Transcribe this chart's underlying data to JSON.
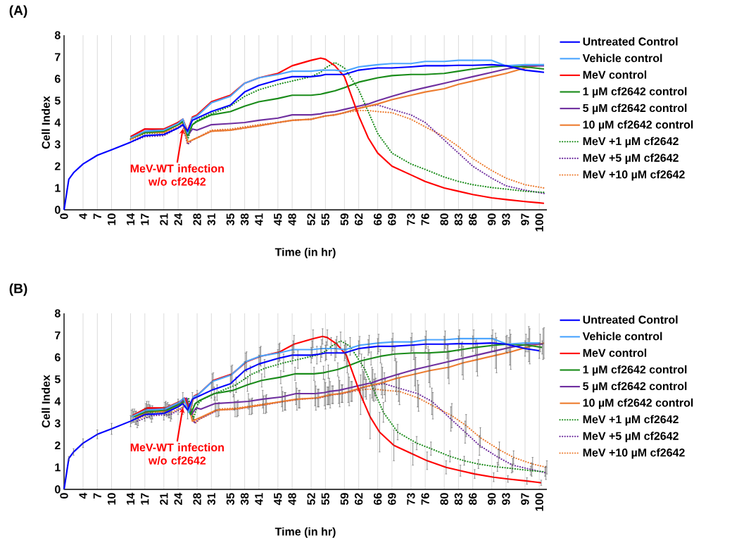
{
  "chart_data": [
    {
      "type": "line",
      "title": "(A)",
      "xlabel": "Time (in hr)",
      "ylabel": "Cell Index",
      "x": [
        0,
        1,
        2,
        4,
        7,
        10,
        14,
        17,
        21,
        24,
        25,
        26,
        27,
        28,
        31,
        35,
        38,
        41,
        45,
        48,
        52,
        54,
        55,
        57,
        59,
        62,
        64,
        66,
        69,
        73,
        76,
        80,
        83,
        86,
        90,
        93,
        97,
        101
      ],
      "xlim": [
        0,
        101.6
      ],
      "ylim": [
        0,
        8
      ],
      "xticks": [
        0,
        4,
        7,
        10,
        14,
        17,
        21,
        24,
        28,
        31,
        35,
        38,
        41,
        45,
        48,
        52,
        55,
        59,
        62,
        66,
        69,
        73,
        76,
        80,
        83,
        86,
        90,
        93,
        97,
        100
      ],
      "yticks": [
        0,
        1,
        2,
        3,
        4,
        5,
        6,
        7,
        8
      ],
      "grid": "x",
      "legend": "right",
      "annotations": [
        {
          "text": "MeV-WT infection w/o cf2642",
          "x": 25,
          "y": 3.8
        }
      ],
      "series": [
        {
          "name": "Untreated Control",
          "color": "#0000ff",
          "line_style": "solid",
          "values": [
            0,
            1.4,
            1.7,
            2.1,
            2.5,
            2.75,
            3.1,
            3.4,
            3.45,
            3.75,
            3.9,
            3.6,
            4.1,
            4.2,
            4.5,
            4.8,
            5.4,
            5.7,
            5.95,
            6.1,
            6.1,
            6.15,
            6.2,
            6.2,
            6.2,
            6.4,
            6.45,
            6.5,
            6.5,
            6.55,
            6.6,
            6.6,
            6.62,
            6.62,
            6.65,
            6.6,
            6.4,
            6.3
          ]
        },
        {
          "name": "Vehicle control",
          "color": "#4da6ff",
          "line_style": "solid",
          "values": [
            null,
            null,
            null,
            null,
            null,
            null,
            3.3,
            3.6,
            3.65,
            3.95,
            4.15,
            3.5,
            4.2,
            4.3,
            4.9,
            5.2,
            5.8,
            6.05,
            6.2,
            6.35,
            6.35,
            6.4,
            6.4,
            6.4,
            6.35,
            6.55,
            6.6,
            6.65,
            6.7,
            6.7,
            6.8,
            6.8,
            6.85,
            6.85,
            6.85,
            6.6,
            6.65,
            6.65
          ]
        },
        {
          "name": "MeV control",
          "color": "#ff0000",
          "line_style": "solid",
          "values": [
            null,
            null,
            null,
            null,
            null,
            null,
            3.35,
            3.7,
            3.7,
            4.0,
            4.15,
            3.6,
            4.25,
            4.35,
            4.95,
            5.25,
            5.8,
            6.05,
            6.25,
            6.6,
            6.85,
            6.95,
            6.9,
            6.6,
            6.1,
            4.3,
            3.3,
            2.6,
            2.0,
            1.6,
            1.3,
            1.0,
            0.85,
            0.7,
            0.55,
            0.47,
            0.38,
            0.3
          ]
        },
        {
          "name": "1 µM cf2642 control",
          "color": "#1a8c1a",
          "line_style": "solid",
          "values": [
            null,
            null,
            null,
            null,
            null,
            null,
            3.3,
            3.55,
            3.6,
            3.9,
            4.05,
            3.4,
            3.9,
            4.05,
            4.35,
            4.5,
            4.75,
            4.95,
            5.1,
            5.25,
            5.25,
            5.3,
            5.35,
            5.45,
            5.6,
            5.85,
            5.95,
            6.05,
            6.15,
            6.2,
            6.2,
            6.25,
            6.35,
            6.45,
            6.55,
            6.6,
            6.55,
            6.45
          ]
        },
        {
          "name": "5 µM cf2642 control",
          "color": "#7030a0",
          "line_style": "solid",
          "values": [
            null,
            null,
            null,
            null,
            null,
            null,
            3.35,
            3.7,
            3.65,
            4.0,
            4.15,
            3.4,
            3.7,
            3.65,
            3.9,
            3.95,
            4.0,
            4.1,
            4.2,
            4.35,
            4.35,
            4.4,
            4.45,
            4.5,
            4.6,
            4.75,
            4.85,
            5.0,
            5.2,
            5.45,
            5.6,
            5.8,
            5.95,
            6.1,
            6.3,
            6.45,
            6.6,
            6.6
          ]
        },
        {
          "name": "10 µM cf2642 control",
          "color": "#ed7d31",
          "line_style": "solid",
          "values": [
            null,
            null,
            null,
            null,
            null,
            null,
            3.25,
            3.55,
            3.55,
            3.9,
            4.0,
            3.1,
            3.2,
            3.3,
            3.6,
            3.65,
            3.75,
            3.85,
            4.0,
            4.1,
            4.15,
            4.25,
            4.3,
            4.35,
            4.45,
            4.65,
            4.75,
            4.85,
            5.05,
            5.25,
            5.4,
            5.55,
            5.75,
            5.9,
            6.1,
            6.25,
            6.5,
            6.65
          ]
        },
        {
          "name": "MeV +1 µM cf2642",
          "color": "#1a8c1a",
          "line_style": "dotted",
          "values": [
            null,
            null,
            null,
            null,
            null,
            null,
            3.25,
            3.5,
            3.55,
            3.95,
            4.15,
            3.2,
            3.9,
            4.1,
            4.4,
            4.75,
            5.2,
            5.5,
            5.75,
            5.9,
            6.1,
            6.3,
            6.5,
            6.75,
            6.5,
            5.5,
            4.5,
            3.5,
            2.6,
            2.1,
            1.85,
            1.5,
            1.3,
            1.15,
            1.02,
            0.95,
            0.85,
            0.8
          ]
        },
        {
          "name": "MeV +5 µM cf2642",
          "color": "#7030a0",
          "line_style": "dotted",
          "values": [
            null,
            null,
            null,
            null,
            null,
            null,
            3.1,
            3.35,
            3.4,
            3.75,
            3.85,
            3.0,
            3.2,
            3.3,
            3.6,
            3.65,
            3.75,
            3.85,
            4.0,
            4.1,
            4.15,
            4.25,
            4.3,
            4.35,
            4.45,
            4.65,
            4.75,
            4.8,
            4.6,
            4.35,
            4.0,
            3.2,
            2.6,
            2.0,
            1.45,
            1.1,
            0.9,
            0.75
          ]
        },
        {
          "name": "MeV +10 µM cf2642",
          "color": "#ed7d31",
          "line_style": "dotted",
          "values": [
            null,
            null,
            null,
            null,
            null,
            null,
            3.2,
            3.5,
            3.5,
            3.8,
            3.95,
            3.0,
            3.2,
            3.3,
            3.65,
            3.7,
            3.8,
            3.9,
            4.0,
            4.1,
            4.15,
            4.25,
            4.3,
            4.35,
            4.45,
            4.55,
            4.55,
            4.5,
            4.45,
            4.15,
            3.8,
            3.35,
            2.9,
            2.35,
            1.8,
            1.45,
            1.15,
            1.0
          ]
        }
      ]
    },
    {
      "type": "line",
      "title": "(B)",
      "xlabel": "Time (in hr)",
      "ylabel": "Cell Index",
      "xlim": [
        0,
        101.6
      ],
      "ylim": [
        0,
        8
      ],
      "xticks": [
        0,
        4,
        7,
        10,
        14,
        17,
        21,
        24,
        28,
        31,
        35,
        38,
        41,
        45,
        48,
        52,
        55,
        59,
        62,
        66,
        69,
        73,
        76,
        80,
        83,
        86,
        90,
        93,
        97,
        100
      ],
      "yticks": [
        0,
        1,
        2,
        3,
        4,
        5,
        6,
        7,
        8
      ],
      "grid": "x",
      "legend": "right",
      "annotations": [
        {
          "text": "MeV-WT infection w/o cf2642",
          "x": 25,
          "y": 3.8
        }
      ],
      "series": [
        {
          "name": "Untreated Control",
          "color": "#0000ff",
          "line_style": "solid",
          "x": [
            0,
            1,
            2,
            4,
            7,
            10,
            14,
            17,
            21,
            24,
            25,
            26,
            27,
            28,
            31,
            35,
            38,
            41,
            45,
            48,
            52,
            54,
            55,
            57,
            59,
            62,
            64,
            66,
            69,
            73,
            76,
            80,
            83,
            86,
            90,
            93,
            97,
            100
          ],
          "values": [
            0,
            1.4,
            1.7,
            2.1,
            2.5,
            2.75,
            3.1,
            3.4,
            3.45,
            3.75,
            3.9,
            3.6,
            4.1,
            4.2,
            4.5,
            4.8,
            5.4,
            5.7,
            5.95,
            6.1,
            6.1,
            6.15,
            6.2,
            6.2,
            6.2,
            6.4,
            6.45,
            6.5,
            6.5,
            6.55,
            6.6,
            6.6,
            6.62,
            6.62,
            6.65,
            6.6,
            6.4,
            6.3
          ],
          "errors": [
            0,
            0.1,
            0.15,
            0.2,
            0.2,
            0.25,
            0.25,
            0.3,
            0.3,
            0.35,
            0.5,
            0.4,
            0.3,
            0.3,
            0.35,
            0.4,
            0.4,
            0.4,
            0.4,
            0.4,
            0.35,
            0.35,
            0.35,
            0.35,
            0.35,
            0.35,
            0.35,
            0.35,
            0.35,
            0.35,
            0.35,
            0.35,
            0.35,
            0.35,
            0.35,
            0.35,
            0.35,
            0.35
          ]
        },
        {
          "name": "Vehicle control",
          "color": "#4da6ff",
          "line_style": "solid",
          "x": [
            14.2,
            17.2,
            21.2,
            24.2,
            25.2,
            26.2,
            27.2,
            28.2,
            31.2,
            35.2,
            38.2,
            41.2,
            45.2,
            48.2,
            52.2,
            54.2,
            55.2,
            57.2,
            59.2,
            62.2,
            64.2,
            66.2,
            69.2,
            73.2,
            76.2,
            80.2,
            83.2,
            86.2,
            90.2,
            93.2,
            97.2,
            100.2
          ],
          "values": [
            3.3,
            3.6,
            3.65,
            3.95,
            4.15,
            3.5,
            4.2,
            4.3,
            4.9,
            5.2,
            5.8,
            6.05,
            6.2,
            6.35,
            6.35,
            6.4,
            6.4,
            6.4,
            6.35,
            6.55,
            6.6,
            6.65,
            6.7,
            6.7,
            6.8,
            6.8,
            6.85,
            6.85,
            6.85,
            6.6,
            6.65,
            6.65
          ],
          "errors": [
            0.3,
            0.3,
            0.3,
            null,
            null,
            null,
            null,
            null,
            0.35,
            0.4,
            0.4,
            0.4,
            0.4,
            0.4,
            0.4,
            0.4,
            null,
            0.4,
            0.4,
            0.4,
            0.4,
            0.4,
            0.4,
            0.4,
            0.4,
            0.4,
            0.4,
            0.4,
            0.4,
            0.4,
            0.4,
            0.4
          ]
        },
        {
          "name": "MeV control",
          "color": "#ff0000",
          "line_style": "solid",
          "x": [
            14.4,
            17.4,
            21.4,
            24.4,
            25.4,
            26.4,
            27.4,
            28.4,
            31.4,
            35.4,
            38.4,
            41.4,
            45.4,
            48.4,
            52.4,
            54.4,
            55.4,
            57.4,
            59.4,
            62.4,
            64.4,
            66.4,
            69.4,
            73.4,
            76.4,
            80.4,
            83.4,
            86.4,
            90.4,
            93.4,
            97.4,
            100.4
          ],
          "values": [
            3.35,
            3.7,
            3.7,
            4.0,
            4.15,
            3.6,
            4.25,
            4.35,
            4.95,
            5.25,
            5.8,
            6.05,
            6.25,
            6.6,
            6.85,
            6.95,
            6.9,
            6.6,
            6.1,
            4.3,
            3.3,
            2.6,
            2.0,
            1.6,
            1.3,
            1.0,
            0.85,
            0.7,
            0.55,
            0.47,
            0.38,
            0.3
          ],
          "errors": [
            0.3,
            0.3,
            0.3,
            null,
            null,
            null,
            null,
            null,
            0.35,
            0.4,
            0.45,
            0.45,
            0.4,
            0.4,
            0.4,
            0.35,
            0.35,
            0.35,
            0.5,
            0.9,
            1.0,
            0.9,
            0.7,
            0.5,
            0.4,
            0.3,
            0.25,
            0.2,
            0.2,
            0.15,
            0.15,
            0.12
          ]
        },
        {
          "name": "1 µM cf2642 control",
          "color": "#1a8c1a",
          "line_style": "solid",
          "x": [
            14.6,
            17.6,
            21.6,
            24.6,
            25.6,
            26.6,
            27.6,
            28.6,
            31.6,
            35.6,
            38.6,
            41.6,
            45.6,
            48.6,
            52.6,
            54.6,
            55.6,
            57.6,
            59.6,
            62.6,
            64.6,
            66.6,
            69.6,
            73.6,
            76.6,
            80.6,
            83.6,
            86.6,
            90.6,
            93.6,
            97.6,
            100.6
          ],
          "values": [
            3.3,
            3.55,
            3.6,
            3.9,
            4.05,
            3.4,
            3.9,
            4.05,
            4.35,
            4.5,
            4.75,
            4.95,
            5.1,
            5.25,
            5.25,
            5.3,
            5.35,
            5.45,
            5.6,
            5.85,
            5.95,
            6.05,
            6.15,
            6.2,
            6.2,
            6.25,
            6.35,
            6.45,
            6.55,
            6.6,
            6.55,
            6.45
          ],
          "errors": [
            0.25,
            0.3,
            0.3,
            null,
            null,
            null,
            null,
            null,
            0.3,
            0.3,
            0.3,
            0.3,
            0.3,
            0.3,
            0.3,
            0.3,
            0.3,
            0.3,
            0.3,
            0.3,
            0.3,
            0.3,
            0.3,
            0.3,
            0.3,
            0.3,
            0.3,
            0.3,
            0.3,
            0.3,
            0.3,
            0.3
          ]
        },
        {
          "name": "5 µM cf2642 control",
          "color": "#7030a0",
          "line_style": "solid",
          "x": [
            14.8,
            17.8,
            21.8,
            24.8,
            25.8,
            26.8,
            27.8,
            28.8,
            31.8,
            35.8,
            38.8,
            41.8,
            45.8,
            48.8,
            52.8,
            54.8,
            55.8,
            57.8,
            59.8,
            62.8,
            64.8,
            66.8,
            69.8,
            73.8,
            76.8,
            80.8,
            83.8,
            86.8,
            90.8,
            93.8,
            97.8,
            100.8
          ],
          "values": [
            3.35,
            3.7,
            3.65,
            4.0,
            4.15,
            3.4,
            3.7,
            3.65,
            3.9,
            3.95,
            4.0,
            4.1,
            4.2,
            4.35,
            4.35,
            4.4,
            4.45,
            4.5,
            4.6,
            4.75,
            4.85,
            5.0,
            5.2,
            5.45,
            5.6,
            5.8,
            5.95,
            6.1,
            6.3,
            6.45,
            6.6,
            6.6
          ],
          "errors": [
            0.3,
            0.3,
            0.3,
            null,
            null,
            null,
            null,
            null,
            0.3,
            0.35,
            0.35,
            0.4,
            0.45,
            0.5,
            0.55,
            0.6,
            0.6,
            0.6,
            0.65,
            0.7,
            0.7,
            0.7,
            0.75,
            0.75,
            0.75,
            0.75,
            0.75,
            0.75,
            0.8,
            0.8,
            0.8,
            0.7
          ]
        },
        {
          "name": "10 µM cf2642 control",
          "color": "#ed7d31",
          "line_style": "solid",
          "x": [
            15,
            18,
            22,
            25,
            26,
            27,
            28,
            29,
            32,
            36,
            39,
            42,
            46,
            49,
            53,
            55,
            56,
            58,
            60,
            63,
            65,
            67,
            70,
            74,
            77,
            81,
            84,
            87,
            91,
            94,
            98,
            101
          ],
          "values": [
            3.25,
            3.55,
            3.55,
            3.9,
            4.0,
            3.1,
            3.2,
            3.3,
            3.6,
            3.65,
            3.75,
            3.85,
            4.0,
            4.1,
            4.15,
            4.25,
            4.3,
            4.35,
            4.45,
            4.65,
            4.75,
            4.85,
            5.05,
            5.25,
            5.4,
            5.55,
            5.75,
            5.9,
            6.1,
            6.25,
            6.5,
            6.65
          ],
          "errors": [
            0.3,
            0.3,
            0.3,
            null,
            null,
            null,
            null,
            null,
            0.3,
            0.35,
            0.35,
            0.4,
            0.45,
            0.5,
            0.55,
            0.6,
            0.6,
            0.6,
            0.65,
            0.7,
            0.7,
            0.7,
            0.75,
            0.75,
            0.75,
            0.75,
            0.75,
            0.75,
            0.8,
            0.8,
            0.8,
            0.7
          ]
        },
        {
          "name": "MeV +1 µM cf2642",
          "color": "#1a8c1a",
          "line_style": "dotted",
          "x": [
            15.2,
            18.2,
            22.2,
            25.2,
            26.2,
            27.2,
            28.2,
            29.2,
            32.2,
            36.2,
            39.2,
            42.2,
            46.2,
            49.2,
            53.2,
            55.2,
            56.2,
            58.2,
            60.2,
            63.2,
            65.2,
            67.2,
            70.2,
            74.2,
            77.2,
            81.2,
            84.2,
            87.2,
            91.2,
            94.2,
            98.2,
            101.2
          ],
          "values": [
            3.25,
            3.5,
            3.55,
            3.95,
            4.15,
            3.2,
            3.9,
            4.1,
            4.4,
            4.75,
            5.2,
            5.5,
            5.75,
            5.9,
            6.1,
            6.3,
            6.5,
            6.75,
            6.5,
            5.5,
            4.5,
            3.5,
            2.6,
            2.1,
            1.85,
            1.5,
            1.3,
            1.15,
            1.02,
            0.95,
            0.85,
            0.8
          ],
          "errors": [
            0.3,
            0.3,
            0.3,
            null,
            null,
            null,
            null,
            null,
            0.35,
            0.35,
            0.4,
            0.4,
            0.4,
            0.4,
            0.4,
            0.4,
            0.4,
            0.4,
            0.4,
            0.5,
            0.5,
            0.45,
            0.35,
            0.3,
            0.3,
            0.25,
            0.2,
            0.2,
            0.2,
            0.2,
            0.2,
            0.2
          ]
        },
        {
          "name": "MeV +5 µM cf2642",
          "color": "#7030a0",
          "line_style": "dotted",
          "x": [
            15.4,
            18.4,
            22.4,
            25.4,
            26.4,
            27.4,
            28.4,
            29.4,
            32.4,
            36.4,
            39.4,
            42.4,
            46.4,
            49.4,
            53.4,
            55.4,
            56.4,
            58.4,
            60.4,
            63.4,
            65.4,
            67.4,
            70.4,
            74.4,
            77.4,
            81.4,
            84.4,
            87.4,
            91.4,
            94.4,
            98.4,
            101.4
          ],
          "values": [
            3.1,
            3.35,
            3.4,
            3.75,
            3.85,
            3.0,
            3.2,
            3.3,
            3.6,
            3.65,
            3.75,
            3.85,
            4.0,
            4.1,
            4.15,
            4.25,
            4.3,
            4.35,
            4.45,
            4.65,
            4.75,
            4.8,
            4.6,
            4.35,
            4.0,
            3.2,
            2.6,
            2.0,
            1.45,
            1.1,
            0.9,
            0.75
          ],
          "errors": [
            0.3,
            0.3,
            0.3,
            null,
            null,
            null,
            null,
            null,
            0.3,
            0.35,
            0.35,
            0.4,
            0.4,
            0.4,
            0.4,
            0.4,
            0.4,
            0.4,
            0.45,
            0.45,
            0.5,
            0.5,
            0.6,
            0.6,
            0.6,
            0.55,
            0.5,
            0.45,
            0.35,
            0.3,
            0.3,
            0.3
          ]
        },
        {
          "name": "MeV +10 µM cf2642",
          "color": "#ed7d31",
          "line_style": "dotted",
          "x": [
            15.6,
            18.6,
            22.6,
            25.6,
            26.6,
            27.6,
            28.6,
            29.6,
            32.6,
            36.6,
            39.6,
            42.6,
            46.6,
            49.6,
            53.6,
            55.6,
            56.6,
            58.6,
            60.6,
            63.6,
            65.6,
            67.6,
            70.6,
            74.6,
            77.6,
            81.6,
            84.6,
            87.6,
            91.6,
            94.6,
            98.6,
            101.6
          ],
          "values": [
            3.2,
            3.5,
            3.5,
            3.8,
            3.95,
            3.0,
            3.2,
            3.3,
            3.65,
            3.7,
            3.8,
            3.9,
            4.0,
            4.1,
            4.15,
            4.25,
            4.3,
            4.35,
            4.45,
            4.55,
            4.55,
            4.5,
            4.45,
            4.15,
            3.8,
            3.35,
            2.9,
            2.35,
            1.8,
            1.45,
            1.15,
            1.0
          ],
          "errors": [
            0.3,
            0.3,
            0.3,
            null,
            null,
            null,
            null,
            null,
            0.3,
            0.35,
            0.35,
            0.4,
            0.4,
            0.4,
            0.4,
            0.4,
            0.4,
            0.4,
            0.45,
            0.45,
            0.5,
            0.5,
            0.6,
            0.6,
            0.6,
            0.55,
            0.5,
            0.45,
            0.35,
            0.3,
            0.3,
            0.3
          ]
        }
      ]
    }
  ]
}
